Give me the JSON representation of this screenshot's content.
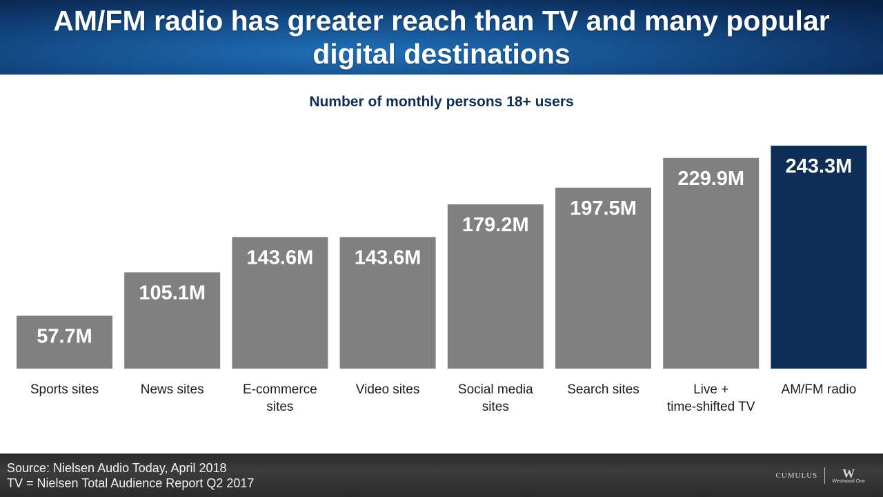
{
  "header": {
    "title": "AM/FM radio has greater reach than TV and many popular digital destinations"
  },
  "footer": {
    "source_line1": "Source: Nielsen Audio Today, April 2018",
    "source_line2": "TV = Nielsen Total Audience Report Q2 2017",
    "logo_cumulus": "CUMULUS",
    "logo_westwood": "Westwood One",
    "logo_westwood_mark": "W"
  },
  "colors": {
    "bar_default": "#808080",
    "bar_highlight": "#0e2e57",
    "bar_label_text": "#ffffff",
    "category_text": "#1a1a1a",
    "header_bg": "#154f8c",
    "subtitle_text": "#0e2e57"
  },
  "chart_data": {
    "type": "bar",
    "title": "Number of monthly persons 18+ users",
    "xlabel": "",
    "ylabel": "",
    "unit": "M",
    "ylim": [
      0,
      243.3
    ],
    "grid": false,
    "legend": "none",
    "categories": [
      [
        "Sports sites"
      ],
      [
        "News sites"
      ],
      [
        "E-commerce",
        "sites"
      ],
      [
        "Video sites"
      ],
      [
        "Social media",
        "sites"
      ],
      [
        "Search sites"
      ],
      [
        "Live +",
        "time-shifted TV"
      ],
      [
        "AM/FM radio"
      ]
    ],
    "values": [
      57.7,
      105.1,
      143.6,
      143.6,
      179.2,
      197.5,
      229.9,
      243.3
    ],
    "value_labels": [
      "57.7M",
      "105.1M",
      "143.6M",
      "143.6M",
      "179.2M",
      "197.5M",
      "229.9M",
      "243.3M"
    ],
    "highlight_index": 7
  }
}
